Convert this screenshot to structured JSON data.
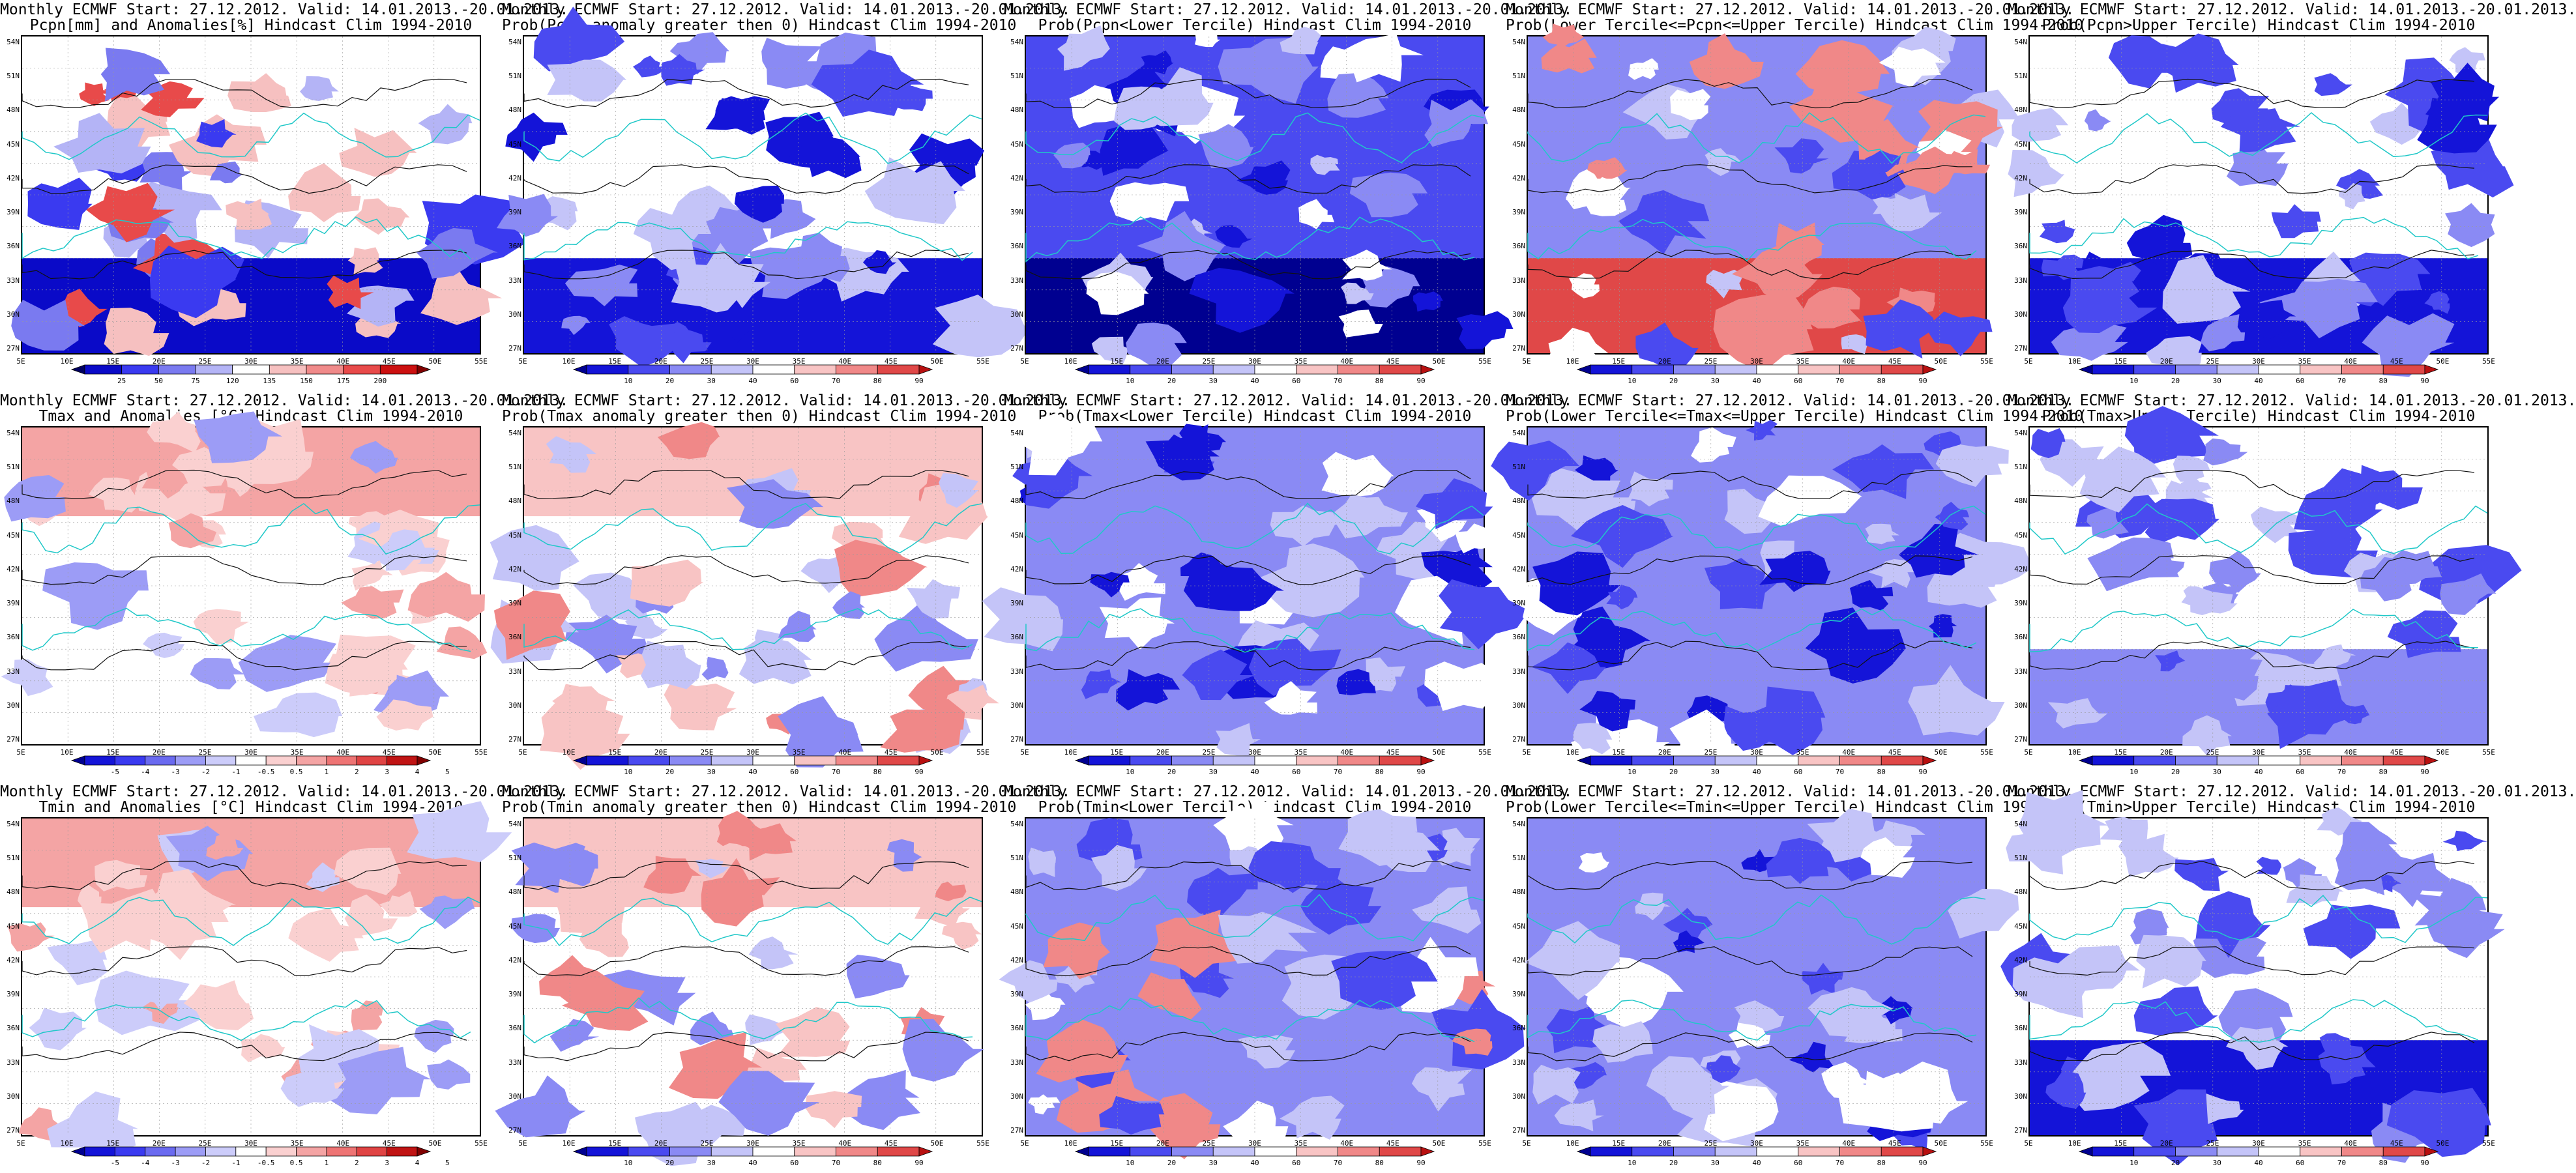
{
  "panels": [
    {
      "title1": "Monthly ECMWF Start: 27.12.2012. Valid: 14.01.2013.-20.01.2013.",
      "title2": "Pcpn[mm] and Anomalies[%] Hindcast Clim 1994-2010",
      "colorbar": "pcpn_anom",
      "map": "pcpn_anom"
    },
    {
      "title1": "Monthly ECMWF Start: 27.12.2012. Valid: 14.01.2013.-20.01.2013.",
      "title2": "Prob(Pcpn anomaly greater then 0) Hindcast Clim 1994-2010",
      "colorbar": "prob",
      "map": "prob_low"
    },
    {
      "title1": "Monthly ECMWF Start: 27.12.2012. Valid: 14.01.2013.-20.01.2013.",
      "title2": "Prob(Pcpn<Lower Tercile) Hindcast Clim 1994-2010",
      "colorbar": "prob",
      "map": "prob_deep"
    },
    {
      "title1": "Monthly ECMWF Start: 27.12.2012. Valid: 14.01.2013.-20.01.2013.",
      "title2": "Prob(Lower Tercile<=Pcpn<=Upper Tercile) Hindcast Clim 1994-2010",
      "colorbar": "prob",
      "map": "prob_mixed_red"
    },
    {
      "title1": "Monthly ECMWF Start: 27.12.2012. Valid: 14.01.2013.-20.01.2013.",
      "title2": "Prob(Pcpn>Upper Tercile) Hindcast Clim 1994-2010",
      "colorbar": "prob",
      "map": "prob_low"
    },
    {
      "title1": "Monthly ECMWF Start: 27.12.2012. Valid: 14.01.2013.-20.01.2013.",
      "title2": "Tmax and Anomalies [°C] Hindcast Clim 1994-2010",
      "colorbar": "temp_anom",
      "map": "temp_warm"
    },
    {
      "title1": "Monthly ECMWF Start: 27.12.2012. Valid: 14.01.2013.-20.01.2013.",
      "title2": "Prob(Tmax anomaly greater then 0) Hindcast Clim 1994-2010",
      "colorbar": "prob",
      "map": "temp_prob_mixed"
    },
    {
      "title1": "Monthly ECMWF Start: 27.12.2012. Valid: 14.01.2013.-20.01.2013.",
      "title2": "Prob(Tmax<Lower Tercile) Hindcast Clim 1994-2010",
      "colorbar": "prob",
      "map": "prob_blue"
    },
    {
      "title1": "Monthly ECMWF Start: 27.12.2012. Valid: 14.01.2013.-20.01.2013.",
      "title2": "Prob(Lower Tercile<=Tmax<=Upper Tercile) Hindcast Clim 1994-2010",
      "colorbar": "prob",
      "map": "prob_blue"
    },
    {
      "title1": "Monthly ECMWF Start: 27.12.2012. Valid: 14.01.2013.-20.01.2013.",
      "title2": "Prob(Tmax>Upper Tercile) Hindcast Clim 1994-2010",
      "colorbar": "prob",
      "map": "prob_light"
    },
    {
      "title1": "Monthly ECMWF Start: 27.12.2012. Valid: 14.01.2013.-20.01.2013.",
      "title2": "Tmin and Anomalies [°C] Hindcast Clim 1994-2010",
      "colorbar": "temp_anom",
      "map": "temp_warm"
    },
    {
      "title1": "Monthly ECMWF Start: 27.12.2012. Valid: 14.01.2013.-20.01.2013.",
      "title2": "Prob(Tmin anomaly greater then 0) Hindcast Clim 1994-2010",
      "colorbar": "prob",
      "map": "temp_prob_mixed"
    },
    {
      "title1": "Monthly ECMWF Start: 27.12.2012. Valid: 14.01.2013.-20.01.2013.",
      "title2": "Prob(Tmin<Lower Tercile) Hindcast Clim 1994-2010",
      "colorbar": "prob",
      "map": "prob_blue_red"
    },
    {
      "title1": "Monthly ECMWF Start: 27.12.2012. Valid: 14.01.2013.-20.01.2013.",
      "title2": "Prob(Lower Tercile<=Tmin<=Upper Tercile) Hindcast Clim 1994-2010",
      "colorbar": "prob",
      "map": "prob_blue"
    },
    {
      "title1": "Monthly ECMWF Start: 27.12.2012. Valid: 14.01.2013.-20.01.2013.",
      "title2": "Prob(Tmin>Upper Tercile) Hindcast Clim 1994-2010",
      "colorbar": "prob",
      "map": "prob_south_blue"
    }
  ],
  "lat_labels": [
    "54N",
    "51N",
    "48N",
    "45N",
    "42N",
    "39N",
    "36N",
    "33N",
    "30N",
    "27N"
  ],
  "lon_labels": [
    "5E",
    "10E",
    "15E",
    "20E",
    "25E",
    "30E",
    "35E",
    "40E",
    "45E",
    "50E",
    "55E"
  ],
  "colorbars": {
    "pcpn_anom": {
      "labels": [
        "25",
        "50",
        "75",
        "120",
        "135",
        "150",
        "175",
        "200"
      ],
      "colors": [
        "#000060",
        "#0a0ac8",
        "#3a3af0",
        "#7a7af0",
        "#b4b4f6",
        "#ffffff",
        "#f6c0c0",
        "#f08a8a",
        "#e84a4a",
        "#cc1010",
        "#800000"
      ]
    },
    "prob": {
      "labels": [
        "10",
        "20",
        "30",
        "40",
        "60",
        "70",
        "80",
        "90"
      ],
      "colors": [
        "#000090",
        "#1414d8",
        "#4a4af0",
        "#8a8af4",
        "#c4c4f8",
        "#ffffff",
        "#f8c4c4",
        "#f08888",
        "#e04848",
        "#b81010"
      ]
    },
    "temp_anom": {
      "labels": [
        "-5",
        "-4",
        "-3",
        "-2",
        "-1",
        "-0.5",
        "0.5",
        "1",
        "2",
        "3",
        "4",
        "5"
      ],
      "colors": [
        "#000090",
        "#1414d8",
        "#3a3af0",
        "#6a6af0",
        "#9c9cf6",
        "#ccccfa",
        "#ffffff",
        "#fad0d0",
        "#f4a4a4",
        "#ee7474",
        "#e04444",
        "#c01414",
        "#800000"
      ]
    }
  }
}
